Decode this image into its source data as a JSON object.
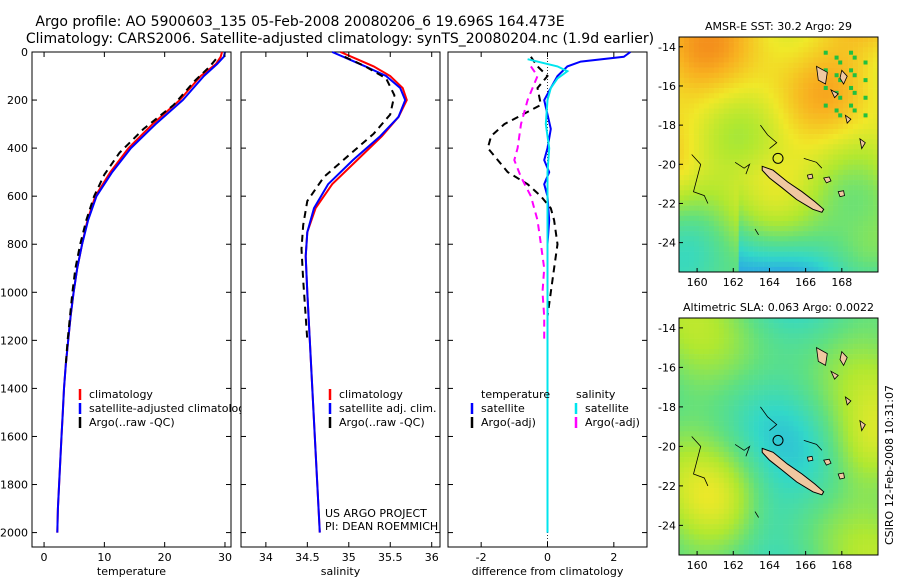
{
  "header": {
    "line1": "Argo profile: AO 5900603_135 05-Feb-2008 20080206_6 19.696S 164.473E",
    "line2": "Climatology: CARS2006. Satellite-adjusted climatology: synTS_20080204.nc (1.9d earlier)"
  },
  "credit": {
    "project": "US ARGO PROJECT",
    "pi": "PI: DEAN ROEMMICH",
    "stamp": "CSIRO 12-Feb-2008 10:31:07"
  },
  "colors": {
    "climatology": "#ff0000",
    "satellite": "#0000ff",
    "argo": "#000000",
    "satellite_salinity": "#00e5ee",
    "argo_salinity": "#ff00ff",
    "land": "#f0c8a0"
  },
  "chart_data": [
    {
      "id": "temperature",
      "type": "line",
      "xlabel": "temperature",
      "ylabel": "",
      "xlim": [
        -2,
        31
      ],
      "ylim": [
        2060,
        0
      ],
      "xticks": [
        0,
        10,
        20,
        30
      ],
      "yticks": [
        0,
        200,
        400,
        600,
        800,
        1000,
        1200,
        1400,
        1600,
        1800,
        2000
      ],
      "legend": {
        "position": "lower-middle",
        "entries": [
          "climatology",
          "satellite-adjusted climatology",
          "Argo(..raw -QC)"
        ]
      },
      "series": [
        {
          "name": "climatology",
          "color": "#ff0000",
          "dash": "none",
          "points": [
            [
              29.5,
              0
            ],
            [
              29.3,
              20
            ],
            [
              28.5,
              50
            ],
            [
              26,
              100
            ],
            [
              22.5,
              200
            ],
            [
              18,
              300
            ],
            [
              14,
              400
            ],
            [
              11,
              500
            ],
            [
              8.5,
              600
            ],
            [
              7.2,
              700
            ],
            [
              6.3,
              800
            ],
            [
              5.5,
              900
            ],
            [
              4.9,
              1000
            ],
            [
              4.4,
              1100
            ],
            [
              4.0,
              1200
            ],
            [
              3.6,
              1300
            ],
            [
              3.3,
              1400
            ],
            [
              3.1,
              1500
            ],
            [
              2.9,
              1600
            ],
            [
              2.7,
              1700
            ],
            [
              2.5,
              1800
            ],
            [
              2.3,
              1900
            ],
            [
              2.2,
              2000
            ]
          ]
        },
        {
          "name": "satellite-adjusted climatology",
          "color": "#0000ff",
          "dash": "none",
          "points": [
            [
              30,
              0
            ],
            [
              29.8,
              20
            ],
            [
              28.7,
              50
            ],
            [
              26.5,
              100
            ],
            [
              23,
              200
            ],
            [
              18.5,
              300
            ],
            [
              14.4,
              400
            ],
            [
              11.3,
              500
            ],
            [
              8.7,
              600
            ],
            [
              7.3,
              700
            ],
            [
              6.3,
              800
            ],
            [
              5.5,
              900
            ],
            [
              4.9,
              1000
            ],
            [
              4.4,
              1100
            ],
            [
              4.0,
              1200
            ],
            [
              3.6,
              1300
            ],
            [
              3.3,
              1400
            ],
            [
              3.1,
              1500
            ],
            [
              2.9,
              1600
            ],
            [
              2.7,
              1700
            ],
            [
              2.5,
              1800
            ],
            [
              2.3,
              1900
            ],
            [
              2.2,
              2000
            ]
          ]
        },
        {
          "name": "Argo(..raw -QC)",
          "color": "#000000",
          "dash": "7,5",
          "points": [
            [
              28.5,
              30
            ],
            [
              27.5,
              60
            ],
            [
              25,
              120
            ],
            [
              21.5,
              220
            ],
            [
              16.5,
              320
            ],
            [
              12.5,
              420
            ],
            [
              10,
              510
            ],
            [
              8.3,
              600
            ],
            [
              7.0,
              700
            ],
            [
              6.0,
              800
            ],
            [
              5.2,
              900
            ],
            [
              4.7,
              1000
            ],
            [
              4.3,
              1100
            ],
            [
              3.9,
              1200
            ],
            [
              3.6,
              1300
            ]
          ]
        }
      ]
    },
    {
      "id": "salinity",
      "type": "line",
      "xlabel": "salinity",
      "ylabel": "",
      "xlim": [
        33.7,
        36.1
      ],
      "ylim": [
        2060,
        0
      ],
      "xticks": [
        34,
        34.5,
        35,
        35.5,
        36
      ],
      "yticks": [],
      "legend": {
        "position": "lower-middle",
        "entries": [
          "climatology",
          "satellite adj. clim.",
          "Argo(..raw -QC)"
        ]
      },
      "series": [
        {
          "name": "climatology",
          "color": "#ff0000",
          "dash": "none",
          "points": [
            [
              34.9,
              0
            ],
            [
              35.1,
              30
            ],
            [
              35.3,
              60
            ],
            [
              35.5,
              100
            ],
            [
              35.65,
              150
            ],
            [
              35.7,
              200
            ],
            [
              35.6,
              270
            ],
            [
              35.4,
              350
            ],
            [
              35.1,
              450
            ],
            [
              34.8,
              550
            ],
            [
              34.6,
              650
            ],
            [
              34.5,
              750
            ],
            [
              34.48,
              850
            ],
            [
              34.5,
              1000
            ],
            [
              34.53,
              1200
            ],
            [
              34.56,
              1400
            ],
            [
              34.59,
              1600
            ],
            [
              34.62,
              1800
            ],
            [
              34.65,
              2000
            ]
          ]
        },
        {
          "name": "satellite adj. clim.",
          "color": "#0000ff",
          "dash": "none",
          "points": [
            [
              34.8,
              0
            ],
            [
              35.0,
              30
            ],
            [
              35.2,
              60
            ],
            [
              35.45,
              100
            ],
            [
              35.62,
              150
            ],
            [
              35.68,
              200
            ],
            [
              35.6,
              270
            ],
            [
              35.38,
              350
            ],
            [
              35.05,
              450
            ],
            [
              34.75,
              550
            ],
            [
              34.58,
              650
            ],
            [
              34.5,
              750
            ],
            [
              34.48,
              850
            ],
            [
              34.5,
              1000
            ],
            [
              34.53,
              1200
            ],
            [
              34.56,
              1400
            ],
            [
              34.59,
              1600
            ],
            [
              34.62,
              1800
            ],
            [
              34.65,
              2000
            ]
          ]
        },
        {
          "name": "Argo(..raw -QC)",
          "color": "#000000",
          "dash": "7,5",
          "points": [
            [
              34.95,
              20
            ],
            [
              35.2,
              60
            ],
            [
              35.45,
              110
            ],
            [
              35.55,
              180
            ],
            [
              35.5,
              260
            ],
            [
              35.3,
              340
            ],
            [
              35.0,
              430
            ],
            [
              34.7,
              520
            ],
            [
              34.5,
              620
            ],
            [
              34.45,
              720
            ],
            [
              34.43,
              820
            ],
            [
              34.45,
              950
            ],
            [
              34.48,
              1100
            ],
            [
              34.5,
              1200
            ]
          ]
        }
      ]
    },
    {
      "id": "difference",
      "type": "line",
      "xlabel": "difference from climatology",
      "ylabel": "",
      "xlim": [
        -3,
        3
      ],
      "ylim": [
        2060,
        0
      ],
      "xticks": [
        -2,
        0,
        2
      ],
      "yticks": [],
      "legend": {
        "position": "lower-middle",
        "entries": [
          "temperature",
          "satellite",
          "Argo(-adj)",
          "salinity",
          "satellite",
          "Argo(-adj)"
        ]
      },
      "series": [
        {
          "name": "temperature satellite",
          "color": "#0000ff",
          "dash": "none",
          "points": [
            [
              2.5,
              0
            ],
            [
              2.3,
              20
            ],
            [
              1.0,
              40
            ],
            [
              0.6,
              60
            ],
            [
              0.3,
              100
            ],
            [
              0.1,
              150
            ],
            [
              -0.1,
              200
            ],
            [
              0,
              260
            ],
            [
              0.1,
              320
            ],
            [
              0,
              400
            ],
            [
              -0.1,
              450
            ],
            [
              0.05,
              500
            ],
            [
              -0.1,
              550
            ],
            [
              0,
              600
            ],
            [
              0.05,
              700
            ],
            [
              0,
              800
            ],
            [
              0,
              1000
            ],
            [
              0,
              2000
            ]
          ]
        },
        {
          "name": "temperature Argo(-adj)",
          "color": "#000000",
          "dash": "7,5",
          "points": [
            [
              -0.5,
              20
            ],
            [
              -0.3,
              60
            ],
            [
              0,
              100
            ],
            [
              -0.3,
              150
            ],
            [
              -0.2,
              220
            ],
            [
              -1.3,
              300
            ],
            [
              -1.7,
              350
            ],
            [
              -1.8,
              400
            ],
            [
              -1.5,
              450
            ],
            [
              -1.2,
              500
            ],
            [
              -0.6,
              550
            ],
            [
              -0.2,
              600
            ],
            [
              0.1,
              650
            ],
            [
              0.2,
              700
            ],
            [
              0.3,
              800
            ],
            [
              0.2,
              900
            ],
            [
              0.1,
              1000
            ],
            [
              0.0,
              1100
            ]
          ]
        },
        {
          "name": "salinity satellite",
          "color": "#00e5ee",
          "dash": "none",
          "points": [
            [
              -0.6,
              30
            ],
            [
              0.3,
              60
            ],
            [
              0.6,
              80
            ],
            [
              0.3,
              110
            ],
            [
              0.1,
              150
            ],
            [
              0.0,
              200
            ],
            [
              -0.05,
              300
            ],
            [
              0.05,
              400
            ],
            [
              0,
              500
            ],
            [
              0,
              700
            ],
            [
              0,
              1000
            ],
            [
              0,
              2000
            ]
          ]
        },
        {
          "name": "salinity Argo(-adj)",
          "color": "#ff00ff",
          "dash": "7,5",
          "points": [
            [
              -0.5,
              60
            ],
            [
              -0.3,
              100
            ],
            [
              -0.6,
              200
            ],
            [
              -0.8,
              300
            ],
            [
              -0.9,
              400
            ],
            [
              -1.0,
              450
            ],
            [
              -0.8,
              520
            ],
            [
              -0.5,
              600
            ],
            [
              -0.3,
              700
            ],
            [
              -0.2,
              800
            ],
            [
              -0.1,
              900
            ],
            [
              -0.15,
              1000
            ],
            [
              -0.1,
              1100
            ],
            [
              -0.1,
              1200
            ]
          ]
        }
      ]
    },
    {
      "id": "sst-map",
      "type": "heatmap",
      "title": "AMSR-E SST: 30.2  Argo: 29",
      "xticks": [
        160,
        162,
        164,
        166,
        168
      ],
      "yticks": [
        -14,
        -16,
        -18,
        -20,
        -22,
        -24
      ],
      "xlim": [
        159,
        170
      ],
      "ylim": [
        -25.5,
        -13.5
      ],
      "marker": {
        "lon": 164.473,
        "lat": -19.696
      },
      "colormap": [
        "#2860e0",
        "#2aa0e8",
        "#32d8c8",
        "#60e080",
        "#b0e830",
        "#f0e828",
        "#f8b020",
        "#f07018"
      ]
    },
    {
      "id": "sla-map",
      "type": "heatmap",
      "title": "Altimetric SLA: 0.063  Argo: 0.0022",
      "xticks": [
        160,
        162,
        164,
        166,
        168
      ],
      "yticks": [
        -14,
        -16,
        -18,
        -20,
        -22,
        -24
      ],
      "xlim": [
        159,
        170
      ],
      "ylim": [
        -25.5,
        -13.5
      ],
      "marker": {
        "lon": 164.473,
        "lat": -19.696
      },
      "colormap": [
        "#2860e0",
        "#2aa0e8",
        "#32d8c8",
        "#60e080",
        "#b0e830",
        "#f0e828",
        "#f8b020",
        "#f07018"
      ]
    }
  ]
}
